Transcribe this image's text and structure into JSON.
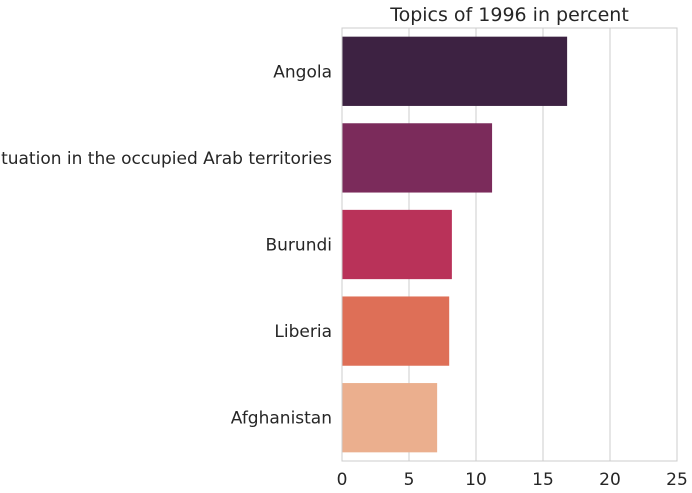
{
  "chart_data": {
    "type": "bar",
    "orientation": "horizontal",
    "title": "Topics of 1996 in percent",
    "xlabel": "",
    "ylabel": "",
    "categories": [
      "Angola",
      "The situation in the occupied Arab territories",
      "Burundi",
      "Liberia",
      "Afghanistan"
    ],
    "values": [
      16.8,
      11.2,
      8.2,
      8.0,
      7.1
    ],
    "colors": [
      "#3d2242",
      "#7b2b5b",
      "#b93259",
      "#de6f57",
      "#ebaf8e"
    ],
    "xlim": [
      0,
      25
    ],
    "xticks": [
      0,
      5,
      10,
      15,
      20,
      25
    ],
    "grid": "vertical"
  }
}
